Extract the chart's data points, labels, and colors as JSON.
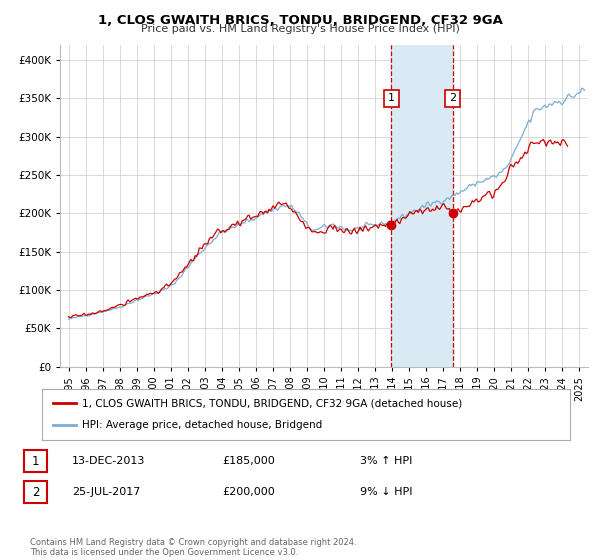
{
  "title": "1, CLOS GWAITH BRICS, TONDU, BRIDGEND, CF32 9GA",
  "subtitle": "Price paid vs. HM Land Registry's House Price Index (HPI)",
  "legend_entry1": "1, CLOS GWAITH BRICS, TONDU, BRIDGEND, CF32 9GA (detached house)",
  "legend_entry2": "HPI: Average price, detached house, Bridgend",
  "sale1_date": "13-DEC-2013",
  "sale1_price": 185000,
  "sale1_pct": "3%",
  "sale1_dir": "↑",
  "sale2_date": "25-JUL-2017",
  "sale2_price": 200000,
  "sale2_pct": "9%",
  "sale2_dir": "↓",
  "sale1_x": 2013.96,
  "sale2_x": 2017.57,
  "hpi_color": "#7aaed4",
  "price_color": "#cc0000",
  "shading_color": "#daeaf5",
  "footnote1": "Contains HM Land Registry data © Crown copyright and database right 2024.",
  "footnote2": "This data is licensed under the Open Government Licence v3.0.",
  "ylim_max": 420000,
  "ylim_min": 0,
  "xlim_min": 1994.5,
  "xlim_max": 2025.5
}
